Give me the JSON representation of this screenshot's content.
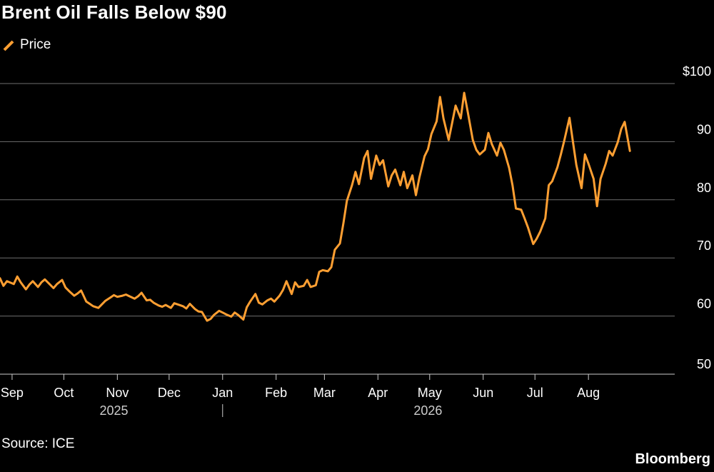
{
  "header": {
    "title": "Brent Oil Falls Below $90"
  },
  "legend": {
    "label": "Price"
  },
  "footer": {
    "source": "Source: ICE",
    "brand": "Bloomberg"
  },
  "colors": {
    "series": "#ff9f32",
    "grid": "#6e6e6e",
    "axis": "#cccccc",
    "background": "#000000"
  },
  "chart_data": {
    "type": "line",
    "title": "Brent Oil Falls Below $90",
    "xlabel": "",
    "ylabel": "",
    "ylim": [
      50,
      100
    ],
    "grid": true,
    "legend_position": "top-left",
    "y_ticks": [
      100,
      90,
      80,
      70,
      60,
      50
    ],
    "y_tick_labels": [
      "$100",
      "90",
      "80",
      "70",
      "60",
      "50"
    ],
    "x_ticks": [
      {
        "date": "2025-09-01",
        "label": "Sep"
      },
      {
        "date": "2025-10-01",
        "label": "Oct"
      },
      {
        "date": "2025-11-01",
        "label": "Nov"
      },
      {
        "date": "2025-12-01",
        "label": "Dec"
      },
      {
        "date": "2026-01-01",
        "label": "Jan"
      },
      {
        "date": "2026-02-01",
        "label": "Feb"
      },
      {
        "date": "2026-03-01",
        "label": "Mar"
      },
      {
        "date": "2026-04-01",
        "label": "Apr"
      },
      {
        "date": "2026-05-01",
        "label": "May"
      },
      {
        "date": "2026-06-01",
        "label": "Jun"
      },
      {
        "date": "2026-07-01",
        "label": "Jul"
      },
      {
        "date": "2026-08-01",
        "label": "Aug"
      }
    ],
    "year_labels": [
      {
        "date": "2025-10-30",
        "label": "2025"
      },
      {
        "date": "2026-04-30",
        "label": "2026"
      }
    ],
    "year_divider": "2026-01-01",
    "xlim": [
      "2025-08-25",
      "2026-09-20"
    ],
    "series": [
      {
        "name": "Price",
        "points": [
          [
            "2025-08-25",
            66.5
          ],
          [
            "2025-08-27",
            65.2
          ],
          [
            "2025-08-29",
            66.0
          ],
          [
            "2025-09-02",
            65.5
          ],
          [
            "2025-09-04",
            66.8
          ],
          [
            "2025-09-06",
            65.8
          ],
          [
            "2025-09-09",
            64.6
          ],
          [
            "2025-09-11",
            65.4
          ],
          [
            "2025-09-13",
            66.0
          ],
          [
            "2025-09-16",
            65.0
          ],
          [
            "2025-09-18",
            65.8
          ],
          [
            "2025-09-20",
            66.3
          ],
          [
            "2025-09-23",
            65.4
          ],
          [
            "2025-09-25",
            64.8
          ],
          [
            "2025-09-27",
            65.5
          ],
          [
            "2025-09-30",
            66.2
          ],
          [
            "2025-10-02",
            64.9
          ],
          [
            "2025-10-04",
            64.3
          ],
          [
            "2025-10-07",
            63.5
          ],
          [
            "2025-10-09",
            63.9
          ],
          [
            "2025-10-11",
            64.4
          ],
          [
            "2025-10-14",
            62.5
          ],
          [
            "2025-10-16",
            62.1
          ],
          [
            "2025-10-18",
            61.7
          ],
          [
            "2025-10-21",
            61.4
          ],
          [
            "2025-10-23",
            62.0
          ],
          [
            "2025-10-25",
            62.6
          ],
          [
            "2025-10-28",
            63.2
          ],
          [
            "2025-10-30",
            63.6
          ],
          [
            "2025-11-01",
            63.3
          ],
          [
            "2025-11-04",
            63.5
          ],
          [
            "2025-11-06",
            63.7
          ],
          [
            "2025-11-08",
            63.4
          ],
          [
            "2025-11-11",
            63.0
          ],
          [
            "2025-11-13",
            63.4
          ],
          [
            "2025-11-15",
            64.0
          ],
          [
            "2025-11-18",
            62.7
          ],
          [
            "2025-11-20",
            62.8
          ],
          [
            "2025-11-22",
            62.3
          ],
          [
            "2025-11-25",
            61.8
          ],
          [
            "2025-11-27",
            61.6
          ],
          [
            "2025-11-29",
            61.9
          ],
          [
            "2025-12-02",
            61.4
          ],
          [
            "2025-12-04",
            62.2
          ],
          [
            "2025-12-06",
            62.0
          ],
          [
            "2025-12-09",
            61.7
          ],
          [
            "2025-12-11",
            61.3
          ],
          [
            "2025-12-13",
            62.1
          ],
          [
            "2025-12-16",
            61.2
          ],
          [
            "2025-12-18",
            60.8
          ],
          [
            "2025-12-20",
            60.7
          ],
          [
            "2025-12-23",
            59.2
          ],
          [
            "2025-12-25",
            59.5
          ],
          [
            "2025-12-27",
            60.2
          ],
          [
            "2025-12-30",
            60.9
          ],
          [
            "2026-01-01",
            60.6
          ],
          [
            "2026-01-03",
            60.3
          ],
          [
            "2026-01-06",
            59.9
          ],
          [
            "2026-01-08",
            60.6
          ],
          [
            "2026-01-10",
            60.2
          ],
          [
            "2026-01-13",
            59.4
          ],
          [
            "2026-01-15",
            61.5
          ],
          [
            "2026-01-17",
            62.5
          ],
          [
            "2026-01-20",
            63.8
          ],
          [
            "2026-01-22",
            62.3
          ],
          [
            "2026-01-24",
            62.0
          ],
          [
            "2026-01-27",
            62.7
          ],
          [
            "2026-01-29",
            63.0
          ],
          [
            "2026-01-31",
            62.5
          ],
          [
            "2026-02-03",
            63.5
          ],
          [
            "2026-02-05",
            64.5
          ],
          [
            "2026-02-07",
            66.0
          ],
          [
            "2026-02-10",
            63.8
          ],
          [
            "2026-02-12",
            65.8
          ],
          [
            "2026-02-14",
            65.0
          ],
          [
            "2026-02-17",
            65.2
          ],
          [
            "2026-02-19",
            66.2
          ],
          [
            "2026-02-21",
            65.0
          ],
          [
            "2026-02-24",
            65.3
          ],
          [
            "2026-02-26",
            67.6
          ],
          [
            "2026-02-28",
            67.9
          ],
          [
            "2026-03-03",
            67.7
          ],
          [
            "2026-03-05",
            68.4
          ],
          [
            "2026-03-07",
            71.4
          ],
          [
            "2026-03-10",
            72.5
          ],
          [
            "2026-03-12",
            76.0
          ],
          [
            "2026-03-14",
            79.8
          ],
          [
            "2026-03-17",
            82.5
          ],
          [
            "2026-03-19",
            84.8
          ],
          [
            "2026-03-21",
            82.7
          ],
          [
            "2026-03-24",
            87.2
          ],
          [
            "2026-03-26",
            88.4
          ],
          [
            "2026-03-28",
            83.6
          ],
          [
            "2026-03-31",
            87.6
          ],
          [
            "2026-04-02",
            86.0
          ],
          [
            "2026-04-04",
            86.8
          ],
          [
            "2026-04-07",
            82.3
          ],
          [
            "2026-04-09",
            84.2
          ],
          [
            "2026-04-11",
            85.2
          ],
          [
            "2026-04-14",
            82.5
          ],
          [
            "2026-04-16",
            84.8
          ],
          [
            "2026-04-18",
            82.0
          ],
          [
            "2026-04-21",
            84.2
          ],
          [
            "2026-04-23",
            80.8
          ],
          [
            "2026-04-25",
            83.8
          ],
          [
            "2026-04-28",
            87.5
          ],
          [
            "2026-04-30",
            88.7
          ],
          [
            "2026-05-02",
            91.3
          ],
          [
            "2026-05-05",
            93.5
          ],
          [
            "2026-05-07",
            97.7
          ],
          [
            "2026-05-09",
            94.0
          ],
          [
            "2026-05-12",
            90.3
          ],
          [
            "2026-05-14",
            93.2
          ],
          [
            "2026-05-16",
            96.2
          ],
          [
            "2026-05-19",
            94.0
          ],
          [
            "2026-05-21",
            98.4
          ],
          [
            "2026-05-23",
            95.2
          ],
          [
            "2026-05-26",
            90.3
          ],
          [
            "2026-05-28",
            88.6
          ],
          [
            "2026-05-30",
            87.8
          ],
          [
            "2026-06-02",
            88.6
          ],
          [
            "2026-06-04",
            91.5
          ],
          [
            "2026-06-06",
            89.6
          ],
          [
            "2026-06-09",
            87.6
          ],
          [
            "2026-06-11",
            89.8
          ],
          [
            "2026-06-13",
            88.6
          ],
          [
            "2026-06-16",
            85.5
          ],
          [
            "2026-06-18",
            82.5
          ],
          [
            "2026-06-20",
            78.5
          ],
          [
            "2026-06-23",
            78.3
          ],
          [
            "2026-06-25",
            76.8
          ],
          [
            "2026-06-27",
            75.2
          ],
          [
            "2026-06-30",
            72.4
          ],
          [
            "2026-07-02",
            73.3
          ],
          [
            "2026-07-04",
            74.5
          ],
          [
            "2026-07-07",
            76.8
          ],
          [
            "2026-07-09",
            82.5
          ],
          [
            "2026-07-11",
            83.2
          ],
          [
            "2026-07-14",
            85.6
          ],
          [
            "2026-07-16",
            87.8
          ],
          [
            "2026-07-18",
            90.2
          ],
          [
            "2026-07-21",
            94.1
          ],
          [
            "2026-07-23",
            90.0
          ],
          [
            "2026-07-25",
            86.0
          ],
          [
            "2026-07-28",
            82.0
          ],
          [
            "2026-07-30",
            87.8
          ],
          [
            "2026-08-01",
            86.2
          ],
          [
            "2026-08-04",
            83.6
          ],
          [
            "2026-08-06",
            78.9
          ],
          [
            "2026-08-08",
            83.6
          ],
          [
            "2026-08-11",
            86.2
          ],
          [
            "2026-08-13",
            88.4
          ],
          [
            "2026-08-15",
            87.6
          ],
          [
            "2026-08-18",
            89.9
          ],
          [
            "2026-08-20",
            92.2
          ],
          [
            "2026-08-22",
            93.4
          ],
          [
            "2026-08-25",
            88.4
          ]
        ]
      }
    ]
  }
}
